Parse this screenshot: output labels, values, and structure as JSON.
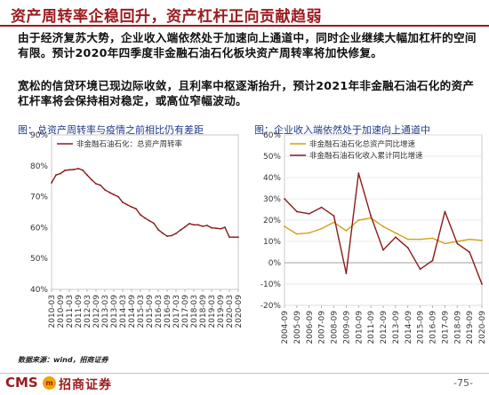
{
  "page": {
    "title": "资产周转率企稳回升，资产杠杆正向贡献趋弱",
    "paragraph1": "由于经济复苏大势，企业收入端依然处于加速向上通道中，同时企业继续大幅加杠杆的空间有限。预计2020年四季度非金融石油石化板块资产周转率将加快修复。",
    "paragraph2": "宽松的信贷环境已现边际收敛，且利率中枢逐渐抬升，预计2021年非金融石油石化的资产杠杆率将会保持相对稳定，或高位窄幅波动。",
    "source": "数据来源：wind，招商证券",
    "logo_en": "CMS",
    "logo_mark": "m",
    "logo_cn": "招商证券",
    "page_number": "-75-"
  },
  "colors": {
    "brand": "#9b1b1e",
    "series_dark": "#8b1a1a",
    "series_gold": "#d4a017",
    "title_blue": "#1f3a8a"
  },
  "chart_data": [
    {
      "type": "line",
      "title": "图：总资产周转率与疫情之前相比仍有差距",
      "x": [
        "2010-03",
        "2010-06",
        "2010-09",
        "2010-12",
        "2011-03",
        "2011-06",
        "2011-09",
        "2011-12",
        "2012-03",
        "2012-06",
        "2012-09",
        "2012-12",
        "2013-03",
        "2013-06",
        "2013-09",
        "2013-12",
        "2014-03",
        "2014-06",
        "2014-09",
        "2014-12",
        "2015-03",
        "2015-06",
        "2015-09",
        "2015-12",
        "2016-03",
        "2016-06",
        "2016-09",
        "2016-12",
        "2017-03",
        "2017-06",
        "2017-09",
        "2017-12",
        "2018-03",
        "2018-06",
        "2018-09",
        "2018-12",
        "2019-03",
        "2019-06",
        "2019-09",
        "2019-12",
        "2020-03",
        "2020-06",
        "2020-09"
      ],
      "xticks": [
        "2010-03",
        "2010-09",
        "2011-03",
        "2011-09",
        "2012-03",
        "2012-09",
        "2013-03",
        "2013-09",
        "2014-03",
        "2014-09",
        "2015-03",
        "2015-09",
        "2016-03",
        "2016-09",
        "2017-03",
        "2017-09",
        "2018-03",
        "2018-09",
        "2019-03",
        "2019-09",
        "2020-03",
        "2020-09"
      ],
      "ylim": [
        40,
        90
      ],
      "yticks": [
        "40%",
        "50%",
        "60%",
        "70%",
        "80%",
        "90%"
      ],
      "series": [
        {
          "name": "非金融石油石化：总资产周转率",
          "color": "#8b1a1a",
          "values": [
            74.5,
            77.0,
            77.5,
            78.5,
            78.7,
            78.8,
            79.1,
            78.6,
            77.0,
            75.5,
            74.2,
            73.7,
            72.2,
            71.4,
            70.7,
            70.0,
            68.2,
            67.4,
            66.7,
            66.1,
            64.1,
            63.1,
            62.2,
            61.4,
            59.3,
            58.2,
            57.2,
            57.4,
            58.1,
            59.2,
            60.2,
            61.3,
            60.9,
            60.9,
            60.4,
            60.7,
            59.9,
            59.8,
            59.6,
            60.1,
            56.9,
            56.9,
            56.9
          ]
        }
      ]
    },
    {
      "type": "line",
      "title": "图：企业收入端依然处于加速向上通道中",
      "x": [
        "2004-09",
        "2005-09",
        "2006-09",
        "2007-09",
        "2008-09",
        "2009-09",
        "2010-09",
        "2011-09",
        "2012-09",
        "2013-09",
        "2014-09",
        "2015-09",
        "2016-09",
        "2017-09",
        "2018-09",
        "2019-09",
        "2020-09"
      ],
      "ylim": [
        -20,
        60
      ],
      "yticks": [
        "-20%",
        "-10%",
        "0%",
        "10%",
        "20%",
        "30%",
        "40%",
        "50%",
        "60%"
      ],
      "series": [
        {
          "name": "非金融石油石化总资产同比增速",
          "color": "#d4a017",
          "values": [
            17,
            13.5,
            14,
            16,
            19,
            15,
            20,
            21,
            17,
            14,
            11,
            11,
            11.5,
            9,
            10,
            11,
            10.5
          ]
        },
        {
          "name": "非金融石油石化收入累计同比增速",
          "color": "#8b1a1a",
          "values": [
            30,
            24,
            23,
            26,
            22,
            -5,
            42,
            22,
            6,
            12,
            7,
            -3,
            1,
            24,
            9,
            5,
            -10
          ]
        }
      ]
    }
  ]
}
